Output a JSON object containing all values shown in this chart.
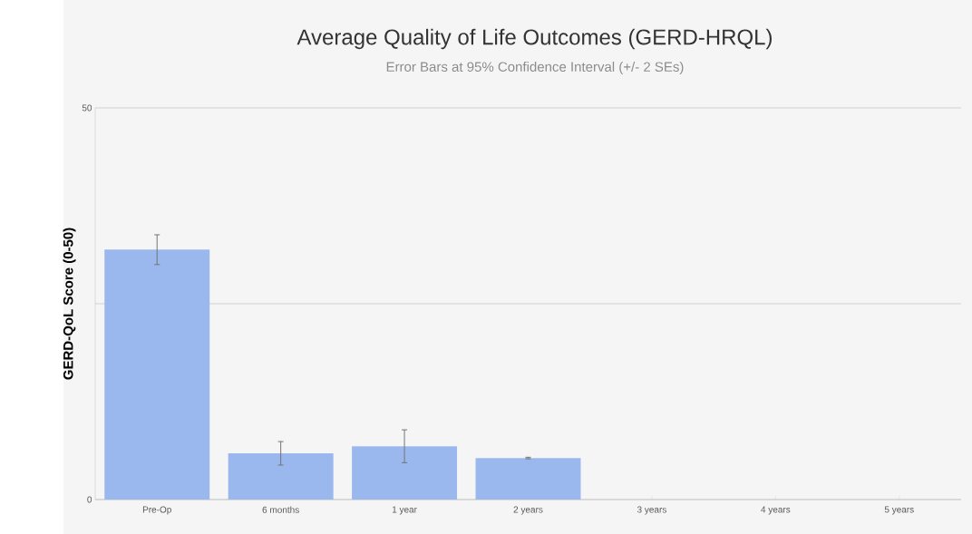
{
  "chart_data": {
    "type": "bar",
    "title": "Average Quality of Life Outcomes (GERD-HRQL)",
    "subtitle": "Error Bars at 95% Confidence Interval (+/- 2 SEs)",
    "ylabel": "GERD-QoL Score (0-50)",
    "categories": [
      "Pre-Op",
      "6 months",
      "1 year",
      "2 years",
      "3 years",
      "4 years",
      "5 years"
    ],
    "values": [
      31.9,
      5.9,
      6.8,
      5.3,
      null,
      null,
      null
    ],
    "errors": [
      1.9,
      1.5,
      2.1,
      0.1,
      null,
      null,
      null
    ],
    "color": "#9ab8ee",
    "ylim": [
      0,
      50
    ],
    "yticks": [
      0,
      {
        "value": 25,
        "label": null
      },
      50
    ],
    "grid": "y"
  }
}
